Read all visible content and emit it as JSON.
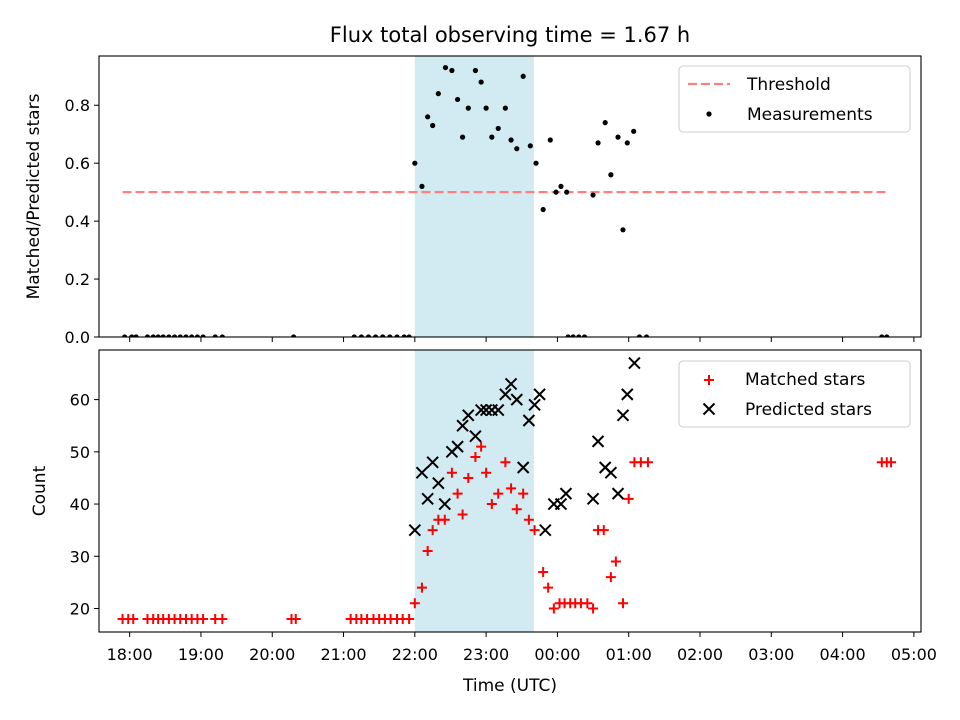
{
  "figure": {
    "title": "Flux total observing time = 1.67 h",
    "xlabel": "Time (UTC)",
    "x_tick_labels": [
      "18:00",
      "19:00",
      "20:00",
      "21:00",
      "22:00",
      "23:00",
      "00:00",
      "01:00",
      "02:00",
      "03:00",
      "04:00",
      "05:00"
    ]
  },
  "colors": {
    "threshold": "#ff7f7f",
    "measurements": "#000000",
    "matched": "#ff0000",
    "predicted": "#000000",
    "span": "#add8e6"
  },
  "chart_data": [
    {
      "type": "scatter",
      "panel": "top",
      "ylabel": "Matched/Predicted stars",
      "x_unit": "hours from 18:00 UTC",
      "xlim": [
        -0.43,
        11.1
      ],
      "ylim": [
        0,
        0.97
      ],
      "y_ticks": [
        0.0,
        0.2,
        0.4,
        0.6,
        0.8
      ],
      "y_tick_labels": [
        "0.0",
        "0.2",
        "0.4",
        "0.6",
        "0.8"
      ],
      "legend": {
        "placement": "upper right",
        "threshold_label": "Threshold",
        "measurements_label": "Measurements"
      },
      "shaded_span": [
        4.0,
        5.67
      ],
      "threshold": {
        "value": 0.5,
        "x_range": [
          -0.1,
          10.65
        ]
      },
      "series": [
        {
          "name": "Measurements",
          "points": [
            [
              -0.07,
              0
            ],
            [
              0.03,
              0
            ],
            [
              0.09,
              0
            ],
            [
              0.25,
              0
            ],
            [
              0.33,
              0
            ],
            [
              0.4,
              0
            ],
            [
              0.47,
              0
            ],
            [
              0.55,
              0
            ],
            [
              0.63,
              0
            ],
            [
              0.71,
              0
            ],
            [
              0.79,
              0
            ],
            [
              0.87,
              0
            ],
            [
              0.95,
              0
            ],
            [
              1.03,
              0
            ],
            [
              1.2,
              0
            ],
            [
              1.3,
              0
            ],
            [
              2.3,
              0
            ],
            [
              3.15,
              0
            ],
            [
              3.25,
              0
            ],
            [
              3.35,
              0
            ],
            [
              3.45,
              0
            ],
            [
              3.55,
              0
            ],
            [
              3.65,
              0
            ],
            [
              3.75,
              0
            ],
            [
              3.85,
              0
            ],
            [
              3.92,
              0
            ],
            [
              4.0,
              0.6
            ],
            [
              4.1,
              0.52
            ],
            [
              4.18,
              0.76
            ],
            [
              4.25,
              0.73
            ],
            [
              4.33,
              0.84
            ],
            [
              4.43,
              0.93
            ],
            [
              4.52,
              0.92
            ],
            [
              4.6,
              0.82
            ],
            [
              4.67,
              0.69
            ],
            [
              4.75,
              0.79
            ],
            [
              4.85,
              0.92
            ],
            [
              4.93,
              0.88
            ],
            [
              5.0,
              0.79
            ],
            [
              5.08,
              0.69
            ],
            [
              5.17,
              0.72
            ],
            [
              5.27,
              0.79
            ],
            [
              5.35,
              0.68
            ],
            [
              5.43,
              0.65
            ],
            [
              5.52,
              0.9
            ],
            [
              5.62,
              0.66
            ],
            [
              5.7,
              0.6
            ],
            [
              5.8,
              0.44
            ],
            [
              5.9,
              0.68
            ],
            [
              5.98,
              0.5
            ],
            [
              6.05,
              0.52
            ],
            [
              6.13,
              0.5
            ],
            [
              6.15,
              0
            ],
            [
              6.22,
              0
            ],
            [
              6.3,
              0
            ],
            [
              6.38,
              0
            ],
            [
              6.5,
              0.49
            ],
            [
              6.57,
              0.67
            ],
            [
              6.67,
              0.74
            ],
            [
              6.75,
              0.56
            ],
            [
              6.85,
              0.69
            ],
            [
              6.92,
              0.37
            ],
            [
              6.98,
              0.67
            ],
            [
              7.07,
              0.71
            ],
            [
              7.15,
              0
            ],
            [
              7.25,
              0
            ],
            [
              10.55,
              0
            ],
            [
              10.62,
              0
            ]
          ]
        }
      ]
    },
    {
      "type": "scatter",
      "panel": "bottom",
      "ylabel": "Count",
      "x_unit": "hours from 18:00 UTC",
      "xlim": [
        -0.43,
        11.1
      ],
      "ylim": [
        15.5,
        69.5
      ],
      "y_ticks": [
        20,
        30,
        40,
        50,
        60
      ],
      "y_tick_labels": [
        "20",
        "30",
        "40",
        "50",
        "60"
      ],
      "legend": {
        "placement": "upper right",
        "matched_label": "Matched stars",
        "predicted_label": "Predicted stars"
      },
      "shaded_span": [
        4.0,
        5.67
      ],
      "series": [
        {
          "name": "Matched stars",
          "points": [
            [
              -0.1,
              18
            ],
            [
              -0.02,
              18
            ],
            [
              0.05,
              18
            ],
            [
              0.25,
              18
            ],
            [
              0.33,
              18
            ],
            [
              0.4,
              18
            ],
            [
              0.47,
              18
            ],
            [
              0.55,
              18
            ],
            [
              0.63,
              18
            ],
            [
              0.71,
              18
            ],
            [
              0.79,
              18
            ],
            [
              0.87,
              18
            ],
            [
              0.95,
              18
            ],
            [
              1.03,
              18
            ],
            [
              1.2,
              18
            ],
            [
              1.3,
              18
            ],
            [
              2.27,
              18
            ],
            [
              2.33,
              18
            ],
            [
              3.1,
              18
            ],
            [
              3.18,
              18
            ],
            [
              3.25,
              18
            ],
            [
              3.33,
              18
            ],
            [
              3.42,
              18
            ],
            [
              3.5,
              18
            ],
            [
              3.58,
              18
            ],
            [
              3.66,
              18
            ],
            [
              3.75,
              18
            ],
            [
              3.83,
              18
            ],
            [
              3.92,
              18
            ],
            [
              4.0,
              21
            ],
            [
              4.1,
              24
            ],
            [
              4.18,
              31
            ],
            [
              4.25,
              35
            ],
            [
              4.33,
              37
            ],
            [
              4.42,
              37
            ],
            [
              4.52,
              46
            ],
            [
              4.6,
              42
            ],
            [
              4.67,
              38
            ],
            [
              4.75,
              45
            ],
            [
              4.85,
              49
            ],
            [
              4.93,
              51
            ],
            [
              5.0,
              46
            ],
            [
              5.08,
              40
            ],
            [
              5.17,
              42
            ],
            [
              5.27,
              48
            ],
            [
              5.35,
              43
            ],
            [
              5.43,
              39
            ],
            [
              5.52,
              42
            ],
            [
              5.6,
              37
            ],
            [
              5.68,
              35
            ],
            [
              5.8,
              27
            ],
            [
              5.87,
              24
            ],
            [
              5.95,
              20
            ],
            [
              6.03,
              21
            ],
            [
              6.1,
              21
            ],
            [
              6.18,
              21
            ],
            [
              6.25,
              21
            ],
            [
              6.33,
              21
            ],
            [
              6.42,
              21
            ],
            [
              6.5,
              20
            ],
            [
              6.57,
              35
            ],
            [
              6.65,
              35
            ],
            [
              6.75,
              26
            ],
            [
              6.82,
              29
            ],
            [
              6.92,
              21
            ],
            [
              7.0,
              41
            ],
            [
              7.08,
              48
            ],
            [
              7.17,
              48
            ],
            [
              7.27,
              48
            ],
            [
              10.55,
              48
            ],
            [
              10.62,
              48
            ],
            [
              10.68,
              48
            ]
          ]
        },
        {
          "name": "Predicted stars",
          "points": [
            [
              4.0,
              35
            ],
            [
              4.1,
              46
            ],
            [
              4.18,
              41
            ],
            [
              4.25,
              48
            ],
            [
              4.33,
              44
            ],
            [
              4.42,
              40
            ],
            [
              4.52,
              50
            ],
            [
              4.6,
              51
            ],
            [
              4.67,
              55
            ],
            [
              4.75,
              57
            ],
            [
              4.85,
              53
            ],
            [
              4.93,
              58
            ],
            [
              5.0,
              58
            ],
            [
              5.08,
              58
            ],
            [
              5.17,
              58
            ],
            [
              5.27,
              61
            ],
            [
              5.35,
              63
            ],
            [
              5.43,
              60
            ],
            [
              5.52,
              47
            ],
            [
              5.6,
              56
            ],
            [
              5.68,
              59
            ],
            [
              5.75,
              61
            ],
            [
              5.83,
              35
            ],
            [
              5.95,
              40
            ],
            [
              6.05,
              40
            ],
            [
              6.12,
              42
            ],
            [
              6.5,
              41
            ],
            [
              6.57,
              52
            ],
            [
              6.67,
              47
            ],
            [
              6.75,
              46
            ],
            [
              6.85,
              42
            ],
            [
              6.92,
              57
            ],
            [
              6.98,
              61
            ],
            [
              7.08,
              67
            ]
          ]
        }
      ]
    }
  ]
}
